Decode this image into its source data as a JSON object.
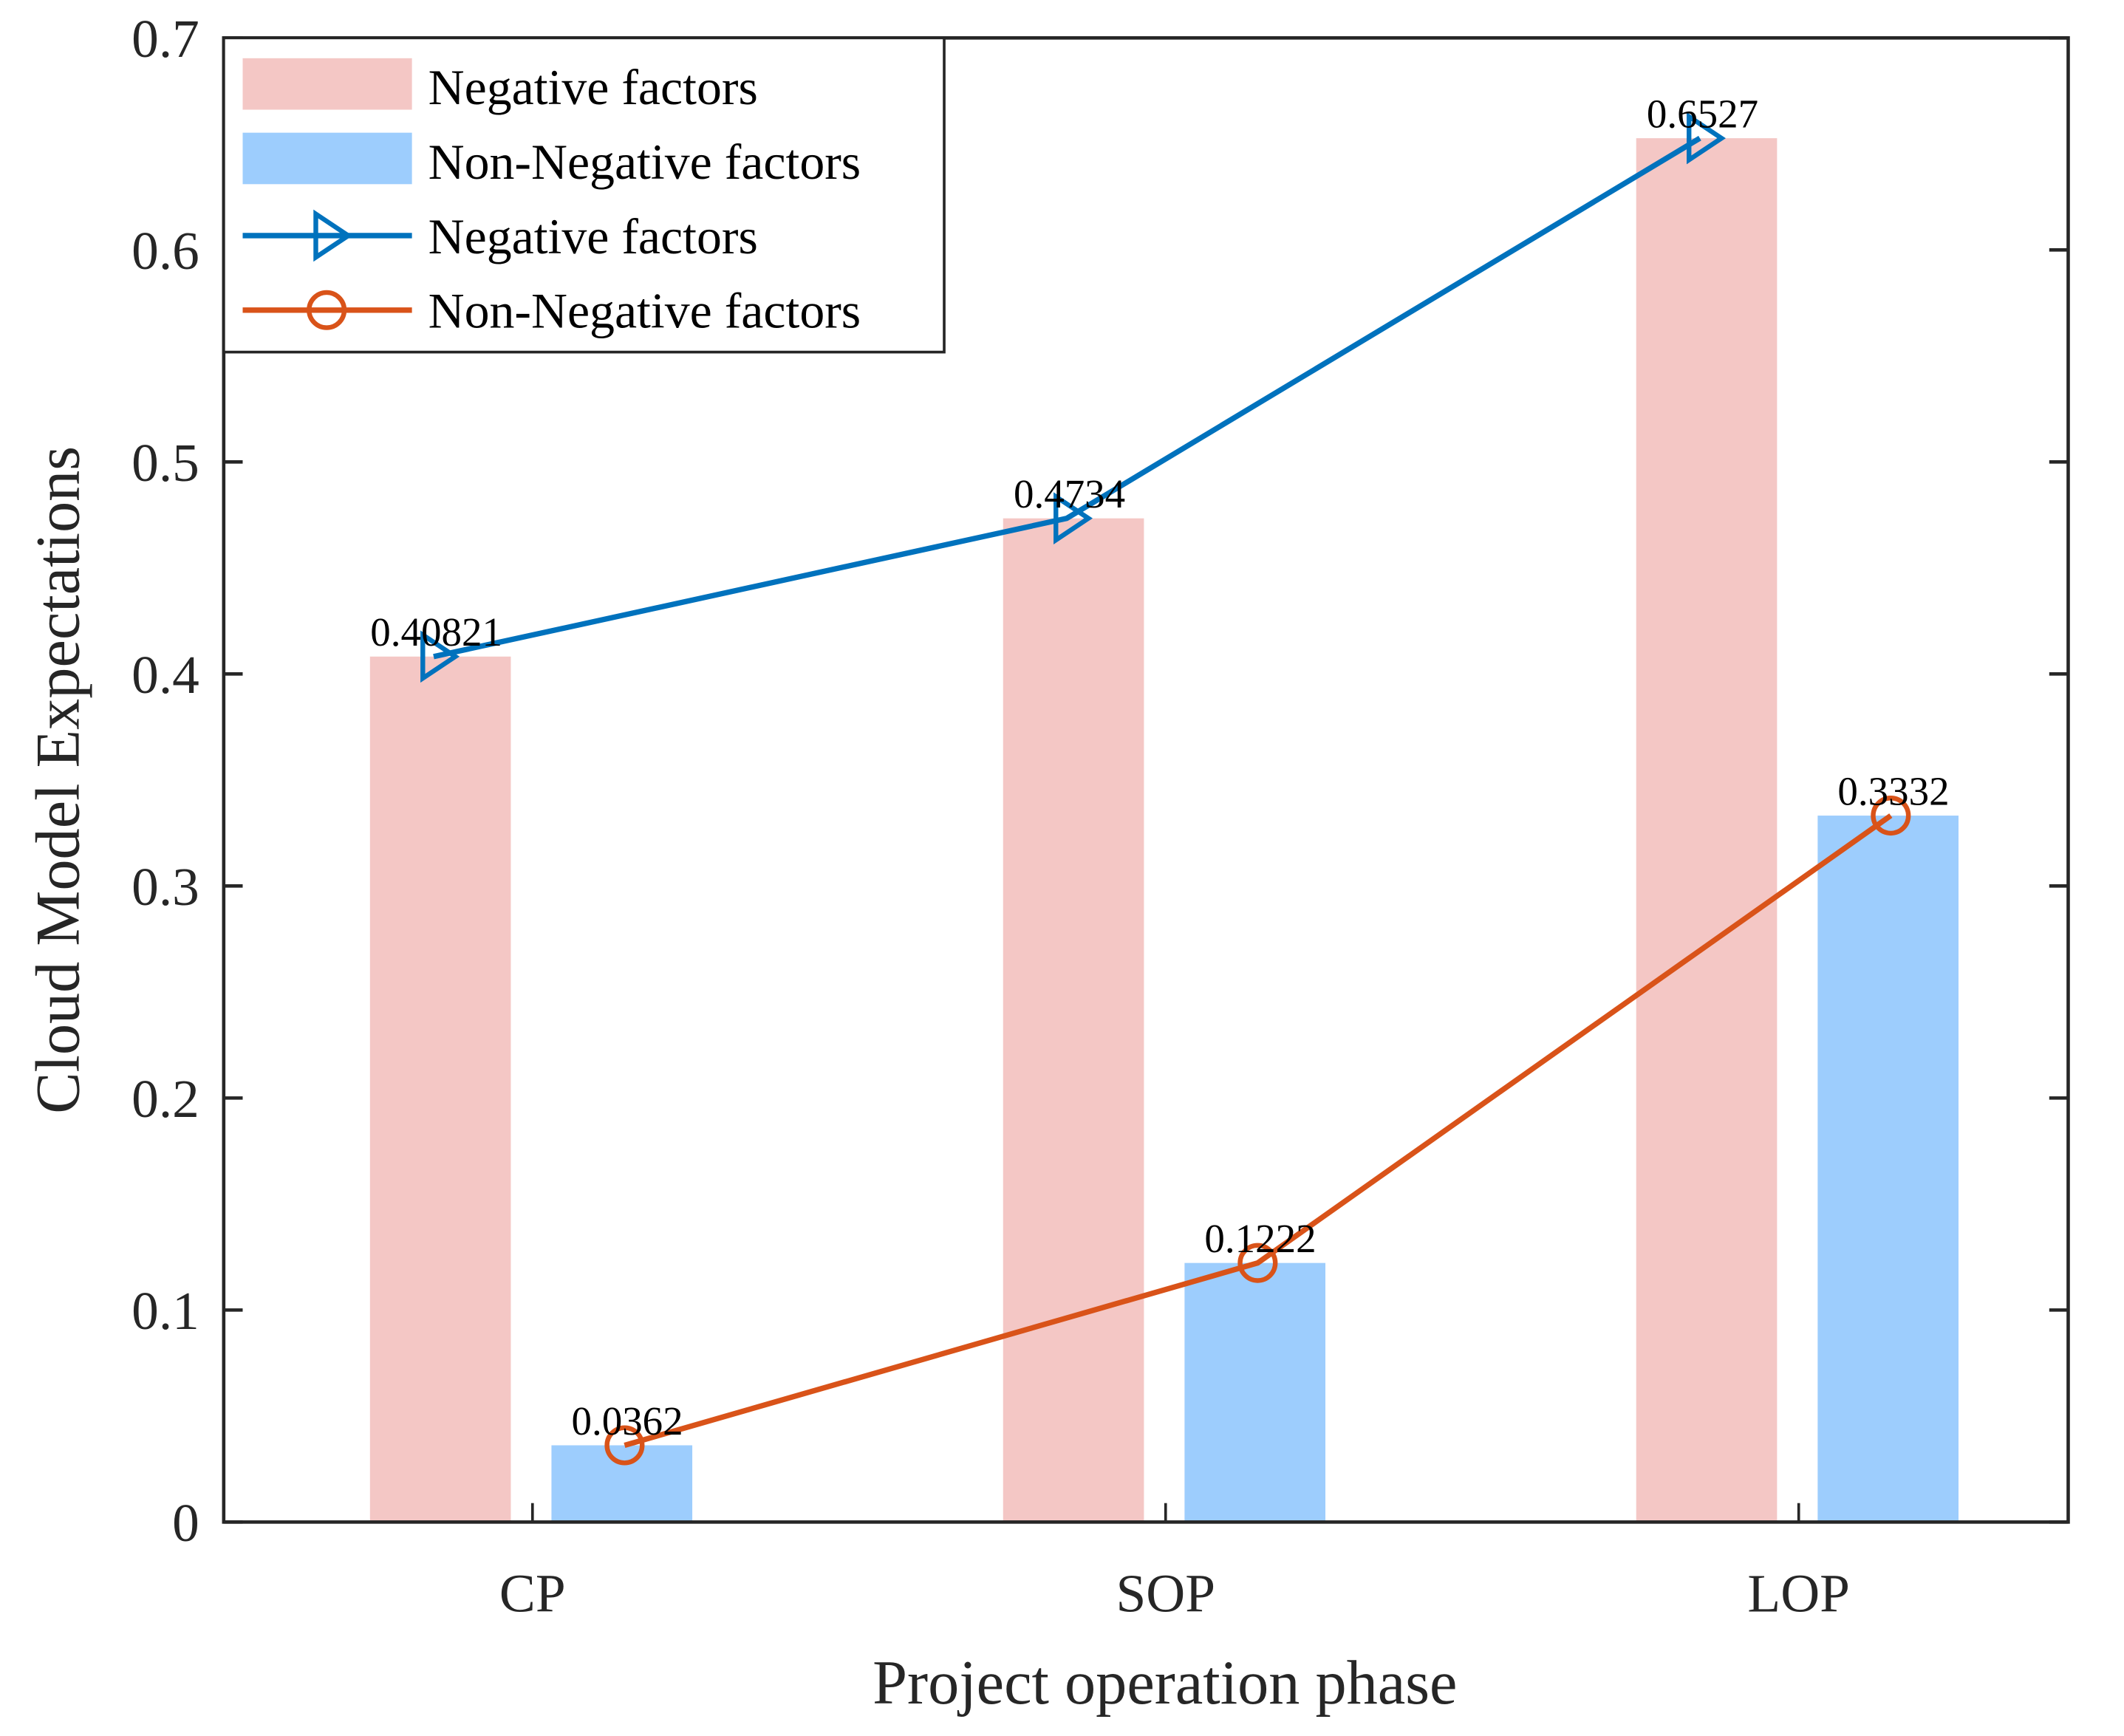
{
  "chart_data": {
    "type": "bar",
    "title": "",
    "xlabel": "Project operation phase",
    "ylabel": "Cloud Model Expectations",
    "categories": [
      "CP",
      "SOP",
      "LOP"
    ],
    "ylim": [
      0,
      0.7
    ],
    "yticks": [
      0,
      0.1,
      0.2,
      0.3,
      0.4,
      0.5,
      0.6,
      0.7
    ],
    "ytick_labels": [
      "0",
      "0.1",
      "0.2",
      "0.3",
      "0.4",
      "0.5",
      "0.6",
      "0.7"
    ],
    "grid": false,
    "legend_position": "top-left",
    "bar_series": [
      {
        "name": "Negative factors",
        "values": [
          0.40821,
          0.4734,
          0.6527
        ],
        "color": "#F4C7C5"
      },
      {
        "name": "Non-Negative factors",
        "values": [
          0.0362,
          0.1222,
          0.3332
        ],
        "color": "#9DCDFD"
      }
    ],
    "line_series": [
      {
        "name": "Negative factors",
        "values": [
          0.40821,
          0.4734,
          0.6527
        ],
        "color": "#0072BD",
        "marker": "triangle-right",
        "labels": [
          "0.40821",
          "0.4734",
          "0.6527"
        ]
      },
      {
        "name": "Non-Negative factors",
        "values": [
          0.0362,
          0.1222,
          0.3332
        ],
        "color": "#D95319",
        "marker": "circle",
        "labels": [
          "0.0362",
          "0.1222",
          "0.3332"
        ]
      }
    ]
  }
}
